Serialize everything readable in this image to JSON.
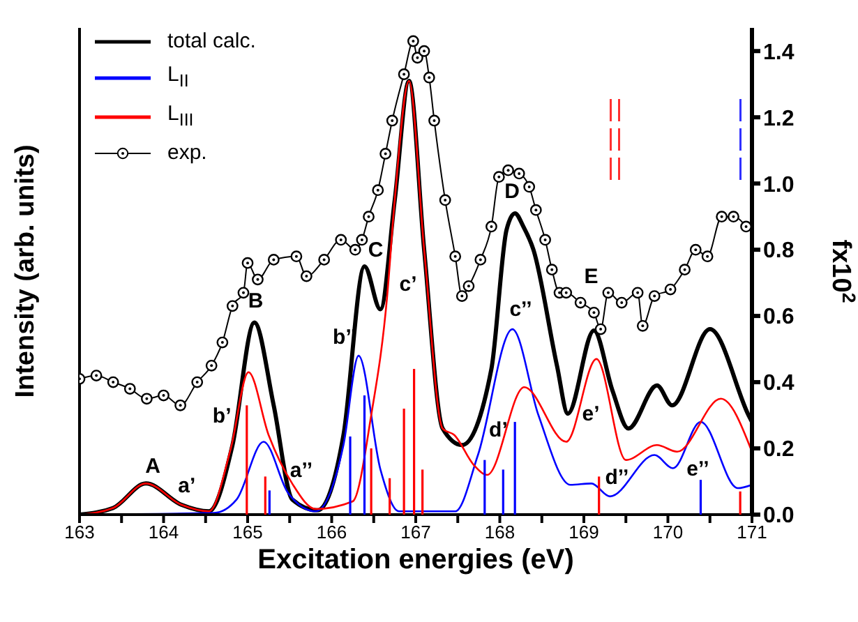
{
  "chart_data": {
    "type": "line",
    "xlabel": "Excitation energies (eV)",
    "ylabel": "Intensity (arb. units)",
    "y2label": "fx10$^{2}$",
    "yticks": [
      {
        "value": 0,
        "label": "0.0"
      },
      0.2,
      0.4,
      0.6,
      0.8,
      {
        "value": 1,
        "label": "1.0"
      },
      1.2,
      1.4
    ],
    "xlim": [
      163,
      171
    ],
    "xticks": [
      163,
      {
        "value": 163.5,
        "label": null
      },
      164,
      {
        "value": 164.5,
        "label": null
      },
      165,
      {
        "value": 165.5,
        "label": null
      },
      166,
      {
        "value": 166.5,
        "label": null
      },
      167,
      {
        "value": 167.5,
        "label": null
      },
      168,
      {
        "value": 168.5,
        "label": null
      },
      169,
      {
        "value": 169.5,
        "label": null
      },
      170,
      {
        "value": 170.5,
        "label": null
      },
      171
    ],
    "ylim": [
      0,
      1.47
    ],
    "legend": "top left",
    "grid": false,
    "series": [
      {
        "name": "total calc.",
        "color": "#000000",
        "x": [
          163,
          163.4,
          163.79,
          164.21,
          164.54,
          164.82,
          165.08,
          165.31,
          165.53,
          165.83,
          166.14,
          166.39,
          166.58,
          166.75,
          166.92,
          167.1,
          167.32,
          167.55,
          167.9,
          168.08,
          168.18,
          168.28,
          168.4,
          168.68,
          168.81,
          169.12,
          169.34,
          169.53,
          169.87,
          170.05,
          170.5,
          170.96,
          171
        ],
        "values": [
          0,
          0.02,
          0.094,
          0.03,
          0.01,
          0.21,
          0.58,
          0.33,
          0.046,
          0.013,
          0.24,
          0.75,
          0.62,
          0.95,
          1.31,
          0.8,
          0.26,
          0.21,
          0.44,
          0.86,
          0.91,
          0.87,
          0.8,
          0.45,
          0.305,
          0.556,
          0.375,
          0.26,
          0.39,
          0.33,
          0.56,
          0.3,
          0.28
        ]
      },
      {
        "name": "L$_{II}$",
        "color": "#0000ff",
        "x": [
          163,
          164.6,
          164.87,
          165.19,
          165.48,
          165.81,
          166.14,
          166.32,
          166.58,
          166.8,
          167.47,
          167.74,
          168.15,
          168.46,
          168.84,
          169.09,
          169.31,
          169.84,
          170.06,
          170.39,
          170.83,
          171
        ],
        "values": [
          0,
          0.005,
          0.046,
          0.22,
          0.066,
          0.01,
          0.21,
          0.48,
          0.136,
          0.01,
          0.01,
          0.18,
          0.56,
          0.3,
          0.09,
          0.094,
          0.055,
          0.18,
          0.14,
          0.28,
          0.08,
          0.09
        ]
      },
      {
        "name": "L$_{III}$",
        "color": "#ff0000",
        "x": [
          163,
          163.4,
          163.79,
          164.21,
          164.54,
          164.8,
          165.01,
          165.25,
          165.53,
          165.81,
          166.25,
          166.47,
          166.66,
          166.75,
          166.92,
          167.1,
          167.32,
          167.46,
          167.69,
          167.85,
          168.29,
          168.79,
          169.15,
          169.5,
          169.87,
          170.11,
          170.63,
          171
        ],
        "values": [
          0,
          0.02,
          0.094,
          0.03,
          0.01,
          0.2,
          0.43,
          0.24,
          0.094,
          0.017,
          0.04,
          0.3,
          0.66,
          0.95,
          1.31,
          0.8,
          0.26,
          0.24,
          0.15,
          0.12,
          0.385,
          0.22,
          0.47,
          0.165,
          0.21,
          0.19,
          0.35,
          0.19
        ]
      },
      {
        "name": "exp.",
        "marker": "circle",
        "color": "#000000",
        "x": [
          163,
          163.2,
          163.4,
          163.6,
          163.8,
          164,
          164.2,
          164.4,
          164.57,
          164.7,
          164.82,
          164.95,
          165,
          165.12,
          165.31,
          165.58,
          165.7,
          165.91,
          166.11,
          166.28,
          166.36,
          166.44,
          166.55,
          166.64,
          166.72,
          166.86,
          166.97,
          167.02,
          167.1,
          167.16,
          167.22,
          167.35,
          167.47,
          167.55,
          167.63,
          167.77,
          167.9,
          167.99,
          168.1,
          168.23,
          168.35,
          168.43,
          168.54,
          168.62,
          168.71,
          168.79,
          168.96,
          169.12,
          169.2,
          169.29,
          169.45,
          169.64,
          169.7,
          169.84,
          170.03,
          170.2,
          170.33,
          170.47,
          170.64,
          170.78,
          170.93
        ],
        "values": [
          0.41,
          0.42,
          0.4,
          0.38,
          0.35,
          0.36,
          0.33,
          0.4,
          0.45,
          0.52,
          0.63,
          0.67,
          0.76,
          0.71,
          0.77,
          0.78,
          0.72,
          0.77,
          0.83,
          0.8,
          0.83,
          0.9,
          0.98,
          1.09,
          1.19,
          1.33,
          1.43,
          1.38,
          1.4,
          1.32,
          1.19,
          0.95,
          0.78,
          0.66,
          0.69,
          0.77,
          0.87,
          1.02,
          1.04,
          1.03,
          0.99,
          0.92,
          0.83,
          0.74,
          0.67,
          0.67,
          0.64,
          0.61,
          0.56,
          0.67,
          0.64,
          0.67,
          0.57,
          0.66,
          0.68,
          0.74,
          0.8,
          0.78,
          0.9,
          0.9,
          0.87
        ]
      },
      {
        "type": "bar",
        "color": "#ff0000",
        "x": [
          164.99,
          165.21,
          166.47,
          166.69,
          166.86,
          166.98,
          167.08,
          169.18,
          170.86
        ],
        "values": [
          0.33,
          0.115,
          0.2,
          0.11,
          0.32,
          0.44,
          0.136,
          0.115,
          0.07
        ]
      },
      {
        "type": "bar",
        "color": "#0000ff",
        "x": [
          165.26,
          166.22,
          166.39,
          167.82,
          168.04,
          168.18,
          170.39
        ],
        "values": [
          0.073,
          0.236,
          0.36,
          0.165,
          0.136,
          0.28,
          0.105
        ]
      }
    ],
    "annotations": [
      {
        "text": "A",
        "x": 163.79,
        "y": 0.094
      },
      {
        "text": "a’",
        "x": 164.21,
        "y": 0.03
      },
      {
        "text": "B",
        "x": 165.08,
        "y": 0.58
      },
      {
        "text": "b’",
        "x": 165.01,
        "y": 0.43
      },
      {
        "text": "a’’",
        "x": 165.19,
        "y": 0.22
      },
      {
        "text": "C",
        "x": 166.39,
        "y": 0.75
      },
      {
        "text": "b’’",
        "x": 166.32,
        "y": 0.48
      },
      {
        "text": "c’",
        "x": 166.66,
        "y": 0.66
      },
      {
        "text": "D",
        "x": 168.18,
        "y": 0.91
      },
      {
        "text": "c’’",
        "x": 168.15,
        "y": 0.56
      },
      {
        "text": "d’",
        "x": 167.85,
        "y": 0.12
      },
      {
        "text": "E",
        "x": 169.12,
        "y": 0.556
      },
      {
        "text": "e’",
        "x": 169.15,
        "y": 0.47
      },
      {
        "text": "d’’",
        "x": 169.31,
        "y": 0.055
      },
      {
        "text": "e’’",
        "x": 170.39,
        "y": 0.28
      }
    ]
  }
}
